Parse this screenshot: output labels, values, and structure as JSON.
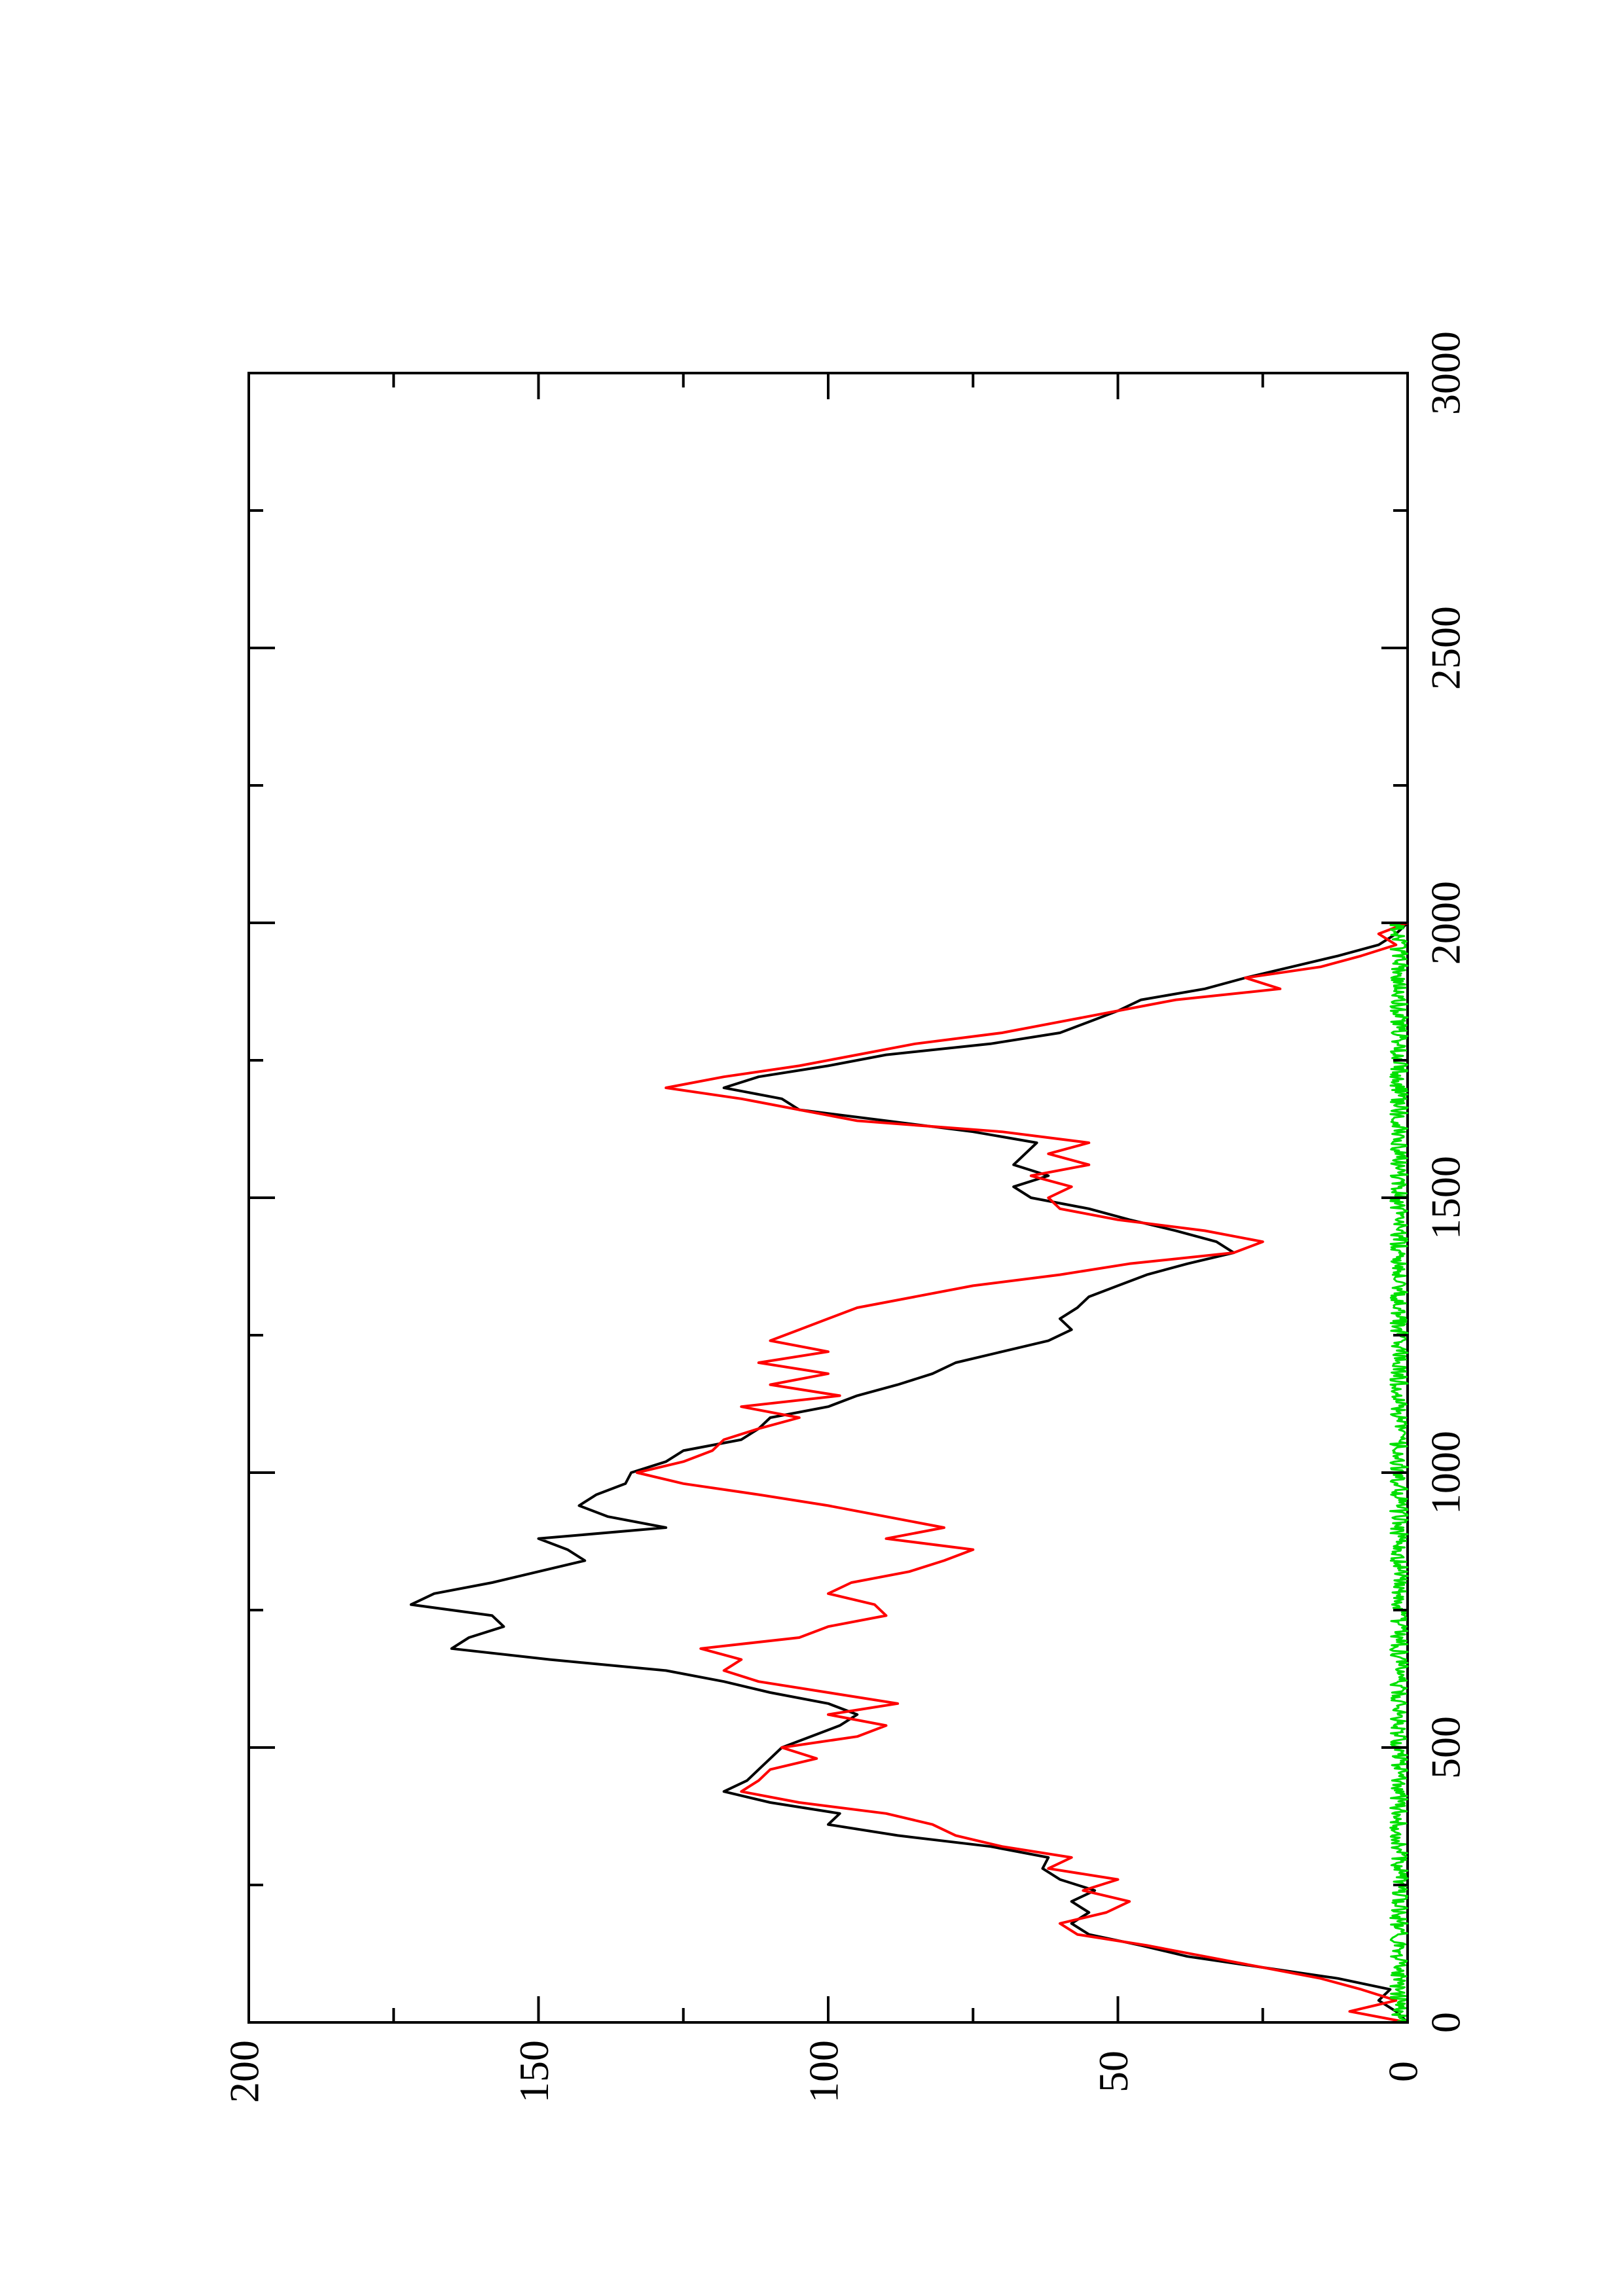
{
  "chart_data": {
    "type": "line",
    "title": "",
    "xlabel": "",
    "ylabel": "",
    "orientation": "rotated 90 degrees counter-clockwise (x axis runs bottom-to-top, y axis runs right-to-left)",
    "xlim": [
      0,
      3000
    ],
    "ylim": [
      0,
      200
    ],
    "x_ticks": [
      "0",
      "500",
      "1000",
      "1500",
      "2000",
      "2500",
      "3000"
    ],
    "y_ticks": [
      "0",
      "50",
      "100",
      "150",
      "200"
    ],
    "grid": false,
    "legend": "none",
    "series": [
      {
        "color": "#000000",
        "points": [
          [
            0,
            0
          ],
          [
            20,
            2
          ],
          [
            40,
            5
          ],
          [
            60,
            3
          ],
          [
            80,
            12
          ],
          [
            100,
            25
          ],
          [
            120,
            38
          ],
          [
            140,
            46
          ],
          [
            160,
            55
          ],
          [
            180,
            58
          ],
          [
            200,
            55
          ],
          [
            220,
            58
          ],
          [
            240,
            54
          ],
          [
            260,
            60
          ],
          [
            280,
            63
          ],
          [
            300,
            62
          ],
          [
            320,
            72
          ],
          [
            340,
            88
          ],
          [
            360,
            100
          ],
          [
            380,
            98
          ],
          [
            400,
            110
          ],
          [
            420,
            118
          ],
          [
            440,
            114
          ],
          [
            460,
            112
          ],
          [
            480,
            110
          ],
          [
            500,
            108
          ],
          [
            520,
            103
          ],
          [
            540,
            98
          ],
          [
            560,
            95
          ],
          [
            580,
            100
          ],
          [
            600,
            110
          ],
          [
            620,
            118
          ],
          [
            640,
            128
          ],
          [
            660,
            148
          ],
          [
            680,
            165
          ],
          [
            700,
            162
          ],
          [
            720,
            156
          ],
          [
            740,
            158
          ],
          [
            760,
            172
          ],
          [
            780,
            168
          ],
          [
            800,
            158
          ],
          [
            820,
            150
          ],
          [
            840,
            142
          ],
          [
            860,
            145
          ],
          [
            880,
            150
          ],
          [
            900,
            128
          ],
          [
            920,
            138
          ],
          [
            940,
            143
          ],
          [
            960,
            140
          ],
          [
            980,
            135
          ],
          [
            1000,
            134
          ],
          [
            1020,
            128
          ],
          [
            1040,
            125
          ],
          [
            1060,
            115
          ],
          [
            1080,
            112
          ],
          [
            1100,
            110
          ],
          [
            1120,
            100
          ],
          [
            1140,
            95
          ],
          [
            1160,
            88
          ],
          [
            1180,
            82
          ],
          [
            1200,
            78
          ],
          [
            1220,
            70
          ],
          [
            1240,
            62
          ],
          [
            1260,
            58
          ],
          [
            1280,
            60
          ],
          [
            1300,
            57
          ],
          [
            1320,
            55
          ],
          [
            1340,
            50
          ],
          [
            1360,
            45
          ],
          [
            1380,
            38
          ],
          [
            1400,
            30
          ],
          [
            1420,
            33
          ],
          [
            1440,
            40
          ],
          [
            1460,
            48
          ],
          [
            1480,
            55
          ],
          [
            1500,
            65
          ],
          [
            1520,
            68
          ],
          [
            1540,
            62
          ],
          [
            1560,
            68
          ],
          [
            1580,
            66
          ],
          [
            1600,
            64
          ],
          [
            1620,
            75
          ],
          [
            1640,
            90
          ],
          [
            1660,
            105
          ],
          [
            1680,
            108
          ],
          [
            1700,
            118
          ],
          [
            1720,
            112
          ],
          [
            1740,
            100
          ],
          [
            1760,
            90
          ],
          [
            1780,
            72
          ],
          [
            1800,
            60
          ],
          [
            1820,
            55
          ],
          [
            1840,
            50
          ],
          [
            1860,
            46
          ],
          [
            1880,
            35
          ],
          [
            1900,
            28
          ],
          [
            1920,
            20
          ],
          [
            1940,
            12
          ],
          [
            1960,
            5
          ],
          [
            1980,
            2
          ],
          [
            2000,
            0
          ]
        ]
      },
      {
        "color": "#ff0000",
        "points": [
          [
            0,
            0
          ],
          [
            20,
            10
          ],
          [
            40,
            2
          ],
          [
            60,
            8
          ],
          [
            80,
            15
          ],
          [
            100,
            25
          ],
          [
            120,
            35
          ],
          [
            140,
            45
          ],
          [
            160,
            57
          ],
          [
            180,
            60
          ],
          [
            200,
            52
          ],
          [
            220,
            48
          ],
          [
            240,
            56
          ],
          [
            260,
            50
          ],
          [
            280,
            62
          ],
          [
            300,
            58
          ],
          [
            320,
            70
          ],
          [
            340,
            78
          ],
          [
            360,
            82
          ],
          [
            380,
            90
          ],
          [
            400,
            105
          ],
          [
            420,
            115
          ],
          [
            440,
            112
          ],
          [
            460,
            110
          ],
          [
            480,
            102
          ],
          [
            500,
            108
          ],
          [
            520,
            95
          ],
          [
            540,
            90
          ],
          [
            560,
            100
          ],
          [
            580,
            88
          ],
          [
            600,
            100
          ],
          [
            620,
            112
          ],
          [
            640,
            118
          ],
          [
            660,
            115
          ],
          [
            680,
            122
          ],
          [
            700,
            105
          ],
          [
            720,
            100
          ],
          [
            740,
            90
          ],
          [
            760,
            92
          ],
          [
            780,
            100
          ],
          [
            800,
            96
          ],
          [
            820,
            86
          ],
          [
            840,
            80
          ],
          [
            860,
            75
          ],
          [
            880,
            90
          ],
          [
            900,
            80
          ],
          [
            920,
            90
          ],
          [
            940,
            100
          ],
          [
            960,
            112
          ],
          [
            980,
            125
          ],
          [
            1000,
            133
          ],
          [
            1020,
            125
          ],
          [
            1040,
            120
          ],
          [
            1060,
            118
          ],
          [
            1080,
            112
          ],
          [
            1100,
            105
          ],
          [
            1120,
            115
          ],
          [
            1140,
            98
          ],
          [
            1160,
            110
          ],
          [
            1180,
            100
          ],
          [
            1200,
            112
          ],
          [
            1220,
            100
          ],
          [
            1240,
            110
          ],
          [
            1260,
            105
          ],
          [
            1280,
            100
          ],
          [
            1300,
            95
          ],
          [
            1320,
            85
          ],
          [
            1340,
            75
          ],
          [
            1360,
            60
          ],
          [
            1380,
            48
          ],
          [
            1400,
            30
          ],
          [
            1420,
            25
          ],
          [
            1440,
            35
          ],
          [
            1460,
            50
          ],
          [
            1480,
            60
          ],
          [
            1500,
            62
          ],
          [
            1520,
            58
          ],
          [
            1540,
            65
          ],
          [
            1560,
            55
          ],
          [
            1580,
            62
          ],
          [
            1600,
            55
          ],
          [
            1620,
            70
          ],
          [
            1640,
            95
          ],
          [
            1660,
            105
          ],
          [
            1680,
            115
          ],
          [
            1700,
            128
          ],
          [
            1720,
            118
          ],
          [
            1740,
            105
          ],
          [
            1760,
            95
          ],
          [
            1780,
            85
          ],
          [
            1800,
            70
          ],
          [
            1820,
            60
          ],
          [
            1840,
            50
          ],
          [
            1860,
            40
          ],
          [
            1880,
            22
          ],
          [
            1900,
            28
          ],
          [
            1920,
            15
          ],
          [
            1940,
            8
          ],
          [
            1960,
            2
          ],
          [
            1980,
            5
          ],
          [
            2000,
            0
          ]
        ]
      },
      {
        "color": "#00e000",
        "noise_amplitude": 3,
        "x_range": [
          0,
          2000
        ]
      }
    ]
  }
}
